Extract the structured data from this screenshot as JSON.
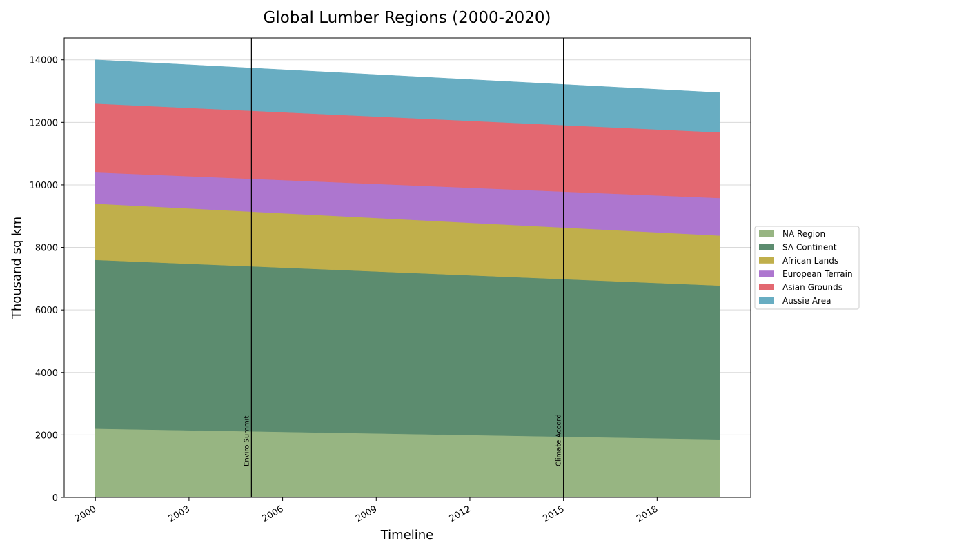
{
  "chart_data": {
    "type": "area",
    "stacked": true,
    "title": "Global Lumber Regions (2000-2020)",
    "xlabel": "Timeline",
    "ylabel": "Thousand sq km",
    "x": [
      2000,
      2020
    ],
    "xlim": [
      1999,
      2021
    ],
    "ylim": [
      0,
      14700
    ],
    "xticks": [
      2000,
      2003,
      2006,
      2009,
      2012,
      2015,
      2018
    ],
    "yticks": [
      0,
      2000,
      4000,
      6000,
      8000,
      10000,
      12000,
      14000
    ],
    "grid": "horizontal",
    "legend_position": "right",
    "series": [
      {
        "name": "NA Region",
        "values": [
          2200,
          1860
        ],
        "color": "#97b582"
      },
      {
        "name": "SA Continent",
        "values": [
          5400,
          4920
        ],
        "color": "#5c8c6f"
      },
      {
        "name": "African Lands",
        "values": [
          1800,
          1600
        ],
        "color": "#c0af4b"
      },
      {
        "name": "European Terrain",
        "values": [
          1000,
          1200
        ],
        "color": "#ad76cf"
      },
      {
        "name": "Asian Grounds",
        "values": [
          2200,
          2100
        ],
        "color": "#e36871"
      },
      {
        "name": "Aussie Area",
        "values": [
          1400,
          1270
        ],
        "color": "#68adc2"
      }
    ],
    "annotations": [
      {
        "x": 2005,
        "label": "Enviro Summit"
      },
      {
        "x": 2015,
        "label": "Climate Accord"
      }
    ]
  }
}
